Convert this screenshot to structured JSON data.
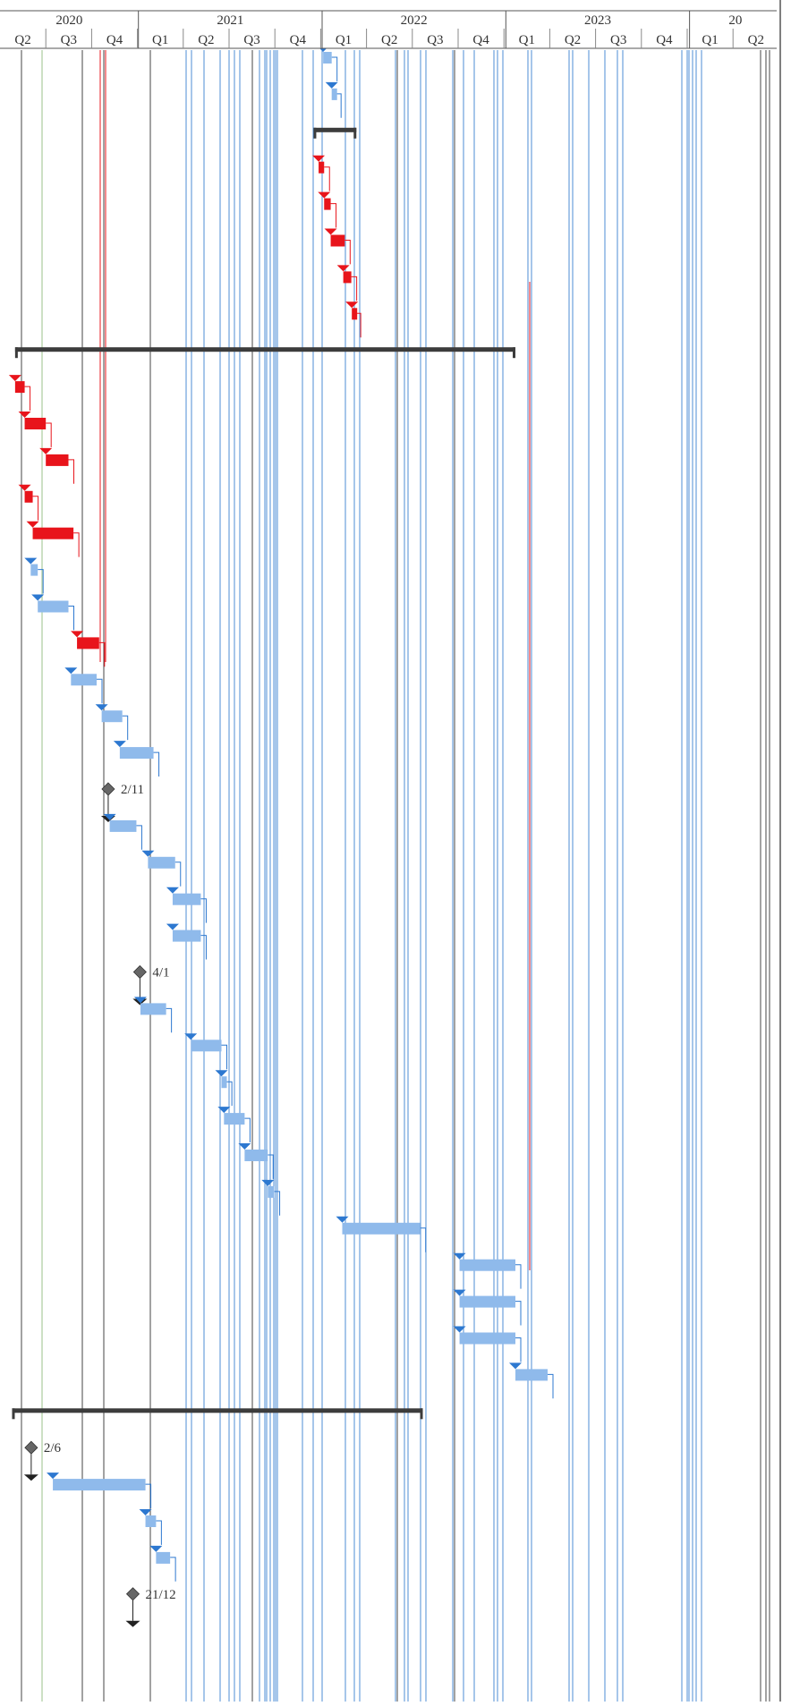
{
  "timescale": {
    "years": [
      {
        "label": "2020",
        "start": "2020-04",
        "end": "2020-12"
      },
      {
        "label": "2021",
        "start": "2021-01",
        "end": "2021-12"
      },
      {
        "label": "2022",
        "start": "2022-01",
        "end": "2022-12"
      },
      {
        "label": "2023",
        "start": "2023-01",
        "end": "2023-12"
      },
      {
        "label": "20",
        "start": "2024-01",
        "end": "2024-06"
      }
    ],
    "quarters": [
      "Q2",
      "Q3",
      "Q4",
      "Q1",
      "Q2",
      "Q3",
      "Q4",
      "Q1",
      "Q2",
      "Q3",
      "Q4",
      "Q1",
      "Q2",
      "Q3",
      "Q4",
      "Q1",
      "Q2"
    ]
  },
  "colors": {
    "task_blue": "#8fbaeb",
    "arrow_blue": "#2d78d0",
    "critical_red": "#e8141b",
    "summary_dark": "#3c3c3c",
    "milestone_gray": "#666666",
    "grid_green": "#9ac08a",
    "header_line": "#555555"
  },
  "tasks": [
    {
      "type": "task",
      "start": "2022-01-03",
      "end": "2022-01-20",
      "kind": "normal"
    },
    {
      "type": "task",
      "start": "2022-01-20",
      "end": "2022-01-28",
      "kind": "normal"
    },
    {
      "type": "summary",
      "start": "2021-12-15",
      "end": "2022-03-10"
    },
    {
      "type": "task",
      "start": "2021-12-25",
      "end": "2022-01-05",
      "kind": "critical"
    },
    {
      "type": "task",
      "start": "2022-01-05",
      "end": "2022-01-18",
      "kind": "critical"
    },
    {
      "type": "task",
      "start": "2022-01-18",
      "end": "2022-02-15",
      "kind": "critical"
    },
    {
      "type": "task",
      "start": "2022-02-12",
      "end": "2022-02-28",
      "kind": "critical"
    },
    {
      "type": "task",
      "start": "2022-03-01",
      "end": "2022-03-08",
      "kind": "critical"
    },
    {
      "type": "summary",
      "start": "2020-05-01",
      "end": "2023-01-20"
    },
    {
      "type": "task",
      "start": "2020-05-01",
      "end": "2020-05-20",
      "kind": "critical"
    },
    {
      "type": "task",
      "start": "2020-05-20",
      "end": "2020-07-01",
      "kind": "critical"
    },
    {
      "type": "task",
      "start": "2020-07-01",
      "end": "2020-08-15",
      "kind": "critical"
    },
    {
      "type": "task",
      "start": "2020-05-20",
      "end": "2020-06-05",
      "kind": "critical"
    },
    {
      "type": "task",
      "start": "2020-06-05",
      "end": "2020-08-25",
      "kind": "critical"
    },
    {
      "type": "task",
      "start": "2020-06-01",
      "end": "2020-06-15",
      "kind": "normal"
    },
    {
      "type": "task",
      "start": "2020-06-15",
      "end": "2020-08-15",
      "kind": "normal"
    },
    {
      "type": "task",
      "start": "2020-09-01",
      "end": "2020-10-15",
      "kind": "critical"
    },
    {
      "type": "task",
      "start": "2020-08-20",
      "end": "2020-10-10",
      "kind": "normal"
    },
    {
      "type": "task",
      "start": "2020-10-20",
      "end": "2020-11-30",
      "kind": "normal"
    },
    {
      "type": "task",
      "start": "2020-11-25",
      "end": "2021-01-31",
      "kind": "normal"
    },
    {
      "type": "milestone",
      "date": "2020-11-02",
      "label": "2/11"
    },
    {
      "type": "task",
      "start": "2020-11-05",
      "end": "2020-12-28",
      "kind": "normal"
    },
    {
      "type": "task",
      "start": "2021-01-20",
      "end": "2021-03-15",
      "kind": "normal"
    },
    {
      "type": "task",
      "start": "2021-03-10",
      "end": "2021-05-05",
      "kind": "normal"
    },
    {
      "type": "task",
      "start": "2021-03-10",
      "end": "2021-05-05",
      "kind": "normal"
    },
    {
      "type": "milestone",
      "date": "2021-01-04",
      "label": "4/1"
    },
    {
      "type": "task",
      "start": "2021-01-05",
      "end": "2021-02-25",
      "kind": "normal"
    },
    {
      "type": "task",
      "start": "2021-04-15",
      "end": "2021-06-15",
      "kind": "normal"
    },
    {
      "type": "task",
      "start": "2021-06-15",
      "end": "2021-06-25",
      "kind": "normal"
    },
    {
      "type": "task",
      "start": "2021-06-20",
      "end": "2021-07-31",
      "kind": "normal"
    },
    {
      "type": "task",
      "start": "2021-07-31",
      "end": "2021-09-15",
      "kind": "normal"
    },
    {
      "type": "task",
      "start": "2021-09-15",
      "end": "2021-09-28",
      "kind": "normal"
    },
    {
      "type": "task",
      "start": "2022-02-10",
      "end": "2022-07-15",
      "kind": "normal"
    },
    {
      "type": "task",
      "start": "2022-10-01",
      "end": "2023-01-20",
      "kind": "normal"
    },
    {
      "type": "task",
      "start": "2022-10-01",
      "end": "2023-01-20",
      "kind": "normal"
    },
    {
      "type": "task",
      "start": "2022-10-01",
      "end": "2023-01-20",
      "kind": "normal"
    },
    {
      "type": "task",
      "start": "2023-01-20",
      "end": "2023-03-25",
      "kind": "normal"
    },
    {
      "type": "summary",
      "start": "2020-04-25",
      "end": "2022-07-20"
    },
    {
      "type": "milestone",
      "date": "2020-06-02",
      "label": "2/6"
    },
    {
      "type": "task",
      "start": "2020-07-15",
      "end": "2021-01-15",
      "kind": "normal"
    },
    {
      "type": "task",
      "start": "2021-01-15",
      "end": "2021-02-05",
      "kind": "normal"
    },
    {
      "type": "task",
      "start": "2021-02-05",
      "end": "2021-03-05",
      "kind": "normal"
    },
    {
      "type": "milestone",
      "date": "2020-12-21",
      "label": "21/12"
    }
  ]
}
